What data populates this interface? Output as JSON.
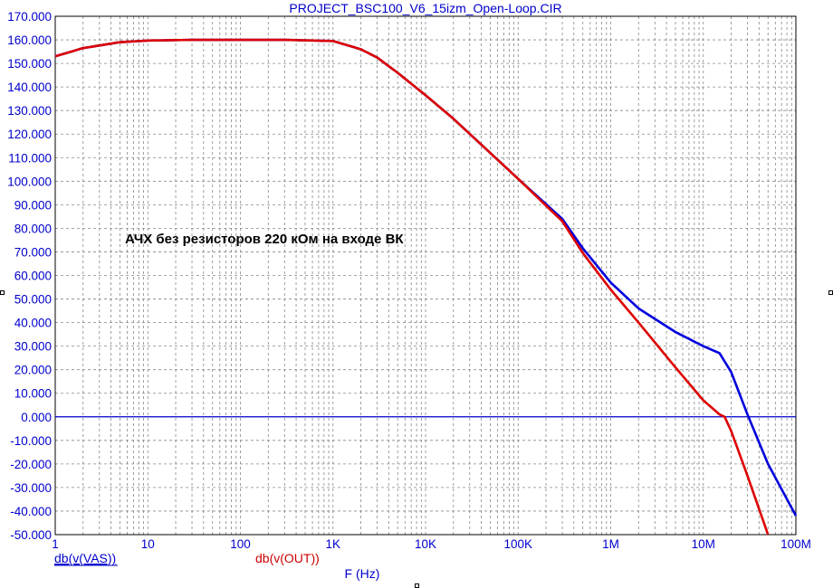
{
  "chart_data": {
    "type": "line",
    "title": "PROJECT_BSC100_V6_15izm_Open-Loop.CIR",
    "annotation": "АЧХ без резисторов 220 кОм на входе ВК",
    "xlabel": "F (Hz)",
    "xscale": "log",
    "xlim": [
      1,
      100000000
    ],
    "ylim": [
      -50,
      170
    ],
    "y_ticks": [
      170,
      160,
      150,
      140,
      130,
      120,
      110,
      100,
      90,
      80,
      70,
      60,
      50,
      40,
      30,
      20,
      10,
      0,
      -10,
      -20,
      -30,
      -40,
      -50
    ],
    "y_tick_labels": [
      "170.000",
      "160.000",
      "150.000",
      "140.000",
      "130.000",
      "120.000",
      "110.000",
      "100.000",
      "90.000",
      "80.000",
      "70.000",
      "60.000",
      "50.000",
      "40.000",
      "30.000",
      "20.000",
      "10.000",
      "0.000",
      "-10.000",
      "-20.000",
      "-30.000",
      "-40.000",
      "-50.000"
    ],
    "x_ticks": [
      1,
      10,
      100,
      1000,
      10000,
      100000,
      1000000,
      10000000,
      100000000
    ],
    "x_tick_labels": [
      "1",
      "10",
      "100",
      "1K",
      "10K",
      "100K",
      "1M",
      "10M",
      "100M"
    ],
    "grid": true,
    "zero_line": 0,
    "series": [
      {
        "name": "db(v(VAS))",
        "color": "#0000dd",
        "x": [
          1,
          2,
          5,
          10,
          30,
          100,
          300,
          1000,
          2000,
          3000,
          5000,
          10000,
          20000,
          50000,
          100000,
          300000,
          500000,
          1000000,
          2000000,
          5000000,
          10000000,
          15000000,
          20000000,
          30000000,
          50000000,
          100000000
        ],
        "y": [
          153,
          156.5,
          159,
          159.7,
          160,
          160,
          160,
          159.5,
          156,
          152.5,
          146,
          136.5,
          126.5,
          112,
          101,
          84,
          71.5,
          57,
          46,
          36,
          30,
          27,
          19,
          1,
          -20,
          -42
        ]
      },
      {
        "name": "db(v(OUT))",
        "color": "#dd0000",
        "x": [
          1,
          2,
          5,
          10,
          30,
          100,
          300,
          1000,
          2000,
          3000,
          5000,
          10000,
          20000,
          50000,
          100000,
          300000,
          500000,
          1000000,
          2000000,
          5000000,
          10000000,
          15000000,
          17000000,
          20000000,
          30000000,
          50000000
        ],
        "y": [
          153,
          156.5,
          159,
          159.7,
          160,
          160,
          160,
          159.5,
          156,
          152.5,
          146,
          136.5,
          126.5,
          112,
          101,
          83,
          69.5,
          54,
          40,
          21,
          7,
          1,
          0,
          -6,
          -25,
          -50
        ]
      }
    ]
  }
}
